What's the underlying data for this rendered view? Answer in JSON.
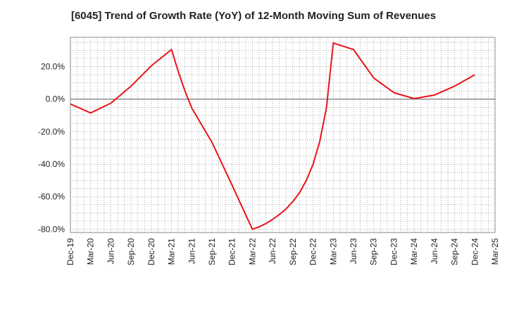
{
  "chart_data": {
    "type": "line",
    "title": "[6045]  Trend of Growth Rate (YoY) of 12-Month Moving Sum of Revenues",
    "xlabel": "",
    "ylabel": "",
    "ylim": [
      -82,
      38
    ],
    "y_ticks": [
      20,
      0,
      -20,
      -40,
      -60,
      -80
    ],
    "y_tick_labels": [
      "20.0%",
      "0.0%",
      "-20.0%",
      "-40.0%",
      "-60.0%",
      "-80.0%"
    ],
    "x_tick_labels": [
      "Dec-19",
      "Mar-20",
      "Jun-20",
      "Sep-20",
      "Dec-20",
      "Mar-21",
      "Jun-21",
      "Sep-21",
      "Dec-21",
      "Mar-22",
      "Jun-22",
      "Sep-22",
      "Dec-22",
      "Mar-23",
      "Jun-23",
      "Sep-23",
      "Dec-23",
      "Mar-24",
      "Jun-24",
      "Sep-24",
      "Dec-24",
      "Mar-25"
    ],
    "grid": true,
    "zero_line": true,
    "series": [
      {
        "color": "#e8141a",
        "points": [
          [
            "Dec-19",
            -3.0
          ],
          [
            "Mar-20",
            -8.5
          ],
          [
            "Jun-20",
            -2.5
          ],
          [
            "Sep-20",
            8.0
          ],
          [
            "Dec-20",
            20.5
          ],
          [
            "Mar-21",
            30.5
          ],
          [
            "Apr-21",
            17.0
          ],
          [
            "May-21",
            5.0
          ],
          [
            "Jun-21",
            -5.5
          ],
          [
            "Sep-21",
            -26.5
          ],
          [
            "Dec-21",
            -53.0
          ],
          [
            "Mar-22",
            -80.0
          ],
          [
            "Apr-22",
            -78.5
          ],
          [
            "May-22",
            -76.5
          ],
          [
            "Jun-22",
            -74.0
          ],
          [
            "Jul-22",
            -71.0
          ],
          [
            "Aug-22",
            -67.5
          ],
          [
            "Sep-22",
            -63.0
          ],
          [
            "Oct-22",
            -57.5
          ],
          [
            "Nov-22",
            -50.0
          ],
          [
            "Dec-22",
            -40.0
          ],
          [
            "Jan-23",
            -26.0
          ],
          [
            "Feb-23",
            -5.0
          ],
          [
            "Mar-23",
            34.5
          ],
          [
            "Jun-23",
            30.5
          ],
          [
            "Sep-23",
            13.0
          ],
          [
            "Dec-23",
            4.0
          ],
          [
            "Mar-24",
            0.3
          ],
          [
            "Jun-24",
            2.5
          ],
          [
            "Sep-24",
            8.0
          ],
          [
            "Dec-24",
            15.0
          ]
        ]
      }
    ]
  }
}
